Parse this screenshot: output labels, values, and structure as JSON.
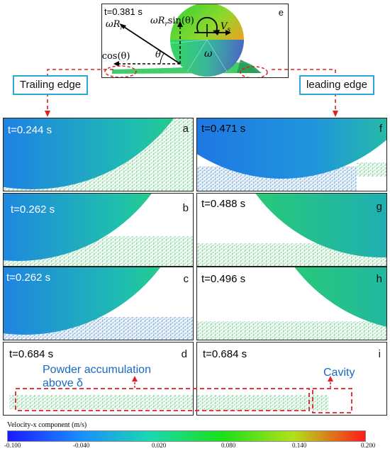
{
  "top_panel": {
    "time": "t=0.381 s",
    "letter": "e",
    "labels": {
      "omega_r": "ωR",
      "sub_r": "r",
      "omega_r_sin_a": "ωR",
      "omega_r_sin_b": "sin(θ)",
      "omega_r_cos_a": "ωR",
      "omega_r_cos_b": "cos(θ)",
      "theta": "θ",
      "vs": "V",
      "vs_sub": "s",
      "omega": "ω"
    }
  },
  "edge_labels": {
    "trailing": "Trailing edge",
    "leading": "leading edge"
  },
  "panels": [
    {
      "letter": "a",
      "time": "t=0.244 s",
      "time_color": "#ffffff"
    },
    {
      "letter": "f",
      "time": "t=0.471 s",
      "time_color": "#111111"
    },
    {
      "letter": "b",
      "time": "t=0.262 s",
      "time_color": "#ffffff"
    },
    {
      "letter": "g",
      "time": "t=0.488 s",
      "time_color": "#111111"
    },
    {
      "letter": "c",
      "time": "t=0.262 s",
      "time_color": "#ffffff"
    },
    {
      "letter": "h",
      "time": "t=0.496 s",
      "time_color": "#111111"
    },
    {
      "letter": "d",
      "time": "t=0.684 s",
      "time_color": "#111111"
    },
    {
      "letter": "i",
      "time": "t=0.684 s",
      "time_color": "#111111"
    }
  ],
  "annotations": {
    "powder_line1": "Powder accumulation",
    "powder_line2": "above δ",
    "cavity": "Cavity"
  },
  "colorbar": {
    "title": "Velocity-x component (m/s)",
    "ticks": [
      "-0.100",
      "-0.040",
      "0.020",
      "0.080",
      "0.140",
      "0.200"
    ],
    "colors": [
      "#1a1aff",
      "#1a8cff",
      "#1ad9b0",
      "#1adf1a",
      "#b4e01a",
      "#ff1a1a"
    ]
  },
  "colors": {
    "dashed_red": "#e02020",
    "edge_box": "#2aa8d8",
    "annotation": "#1769c2"
  }
}
